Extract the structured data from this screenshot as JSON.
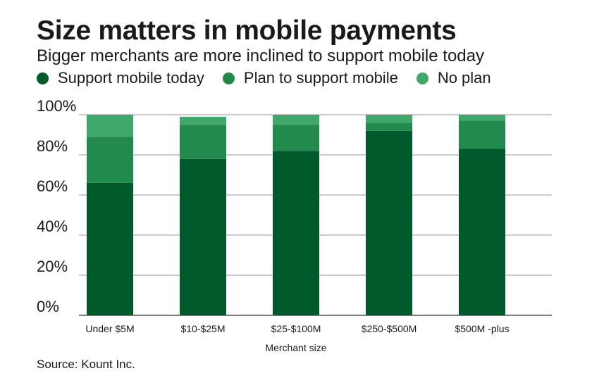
{
  "chart_data": {
    "type": "bar",
    "stacked": true,
    "title": "Size matters in mobile payments",
    "subtitle": "Bigger merchants are more inclined to support mobile today",
    "xlabel": "Merchant size",
    "ylabel": "",
    "ylim": [
      0,
      100
    ],
    "yticks": [
      "0%",
      "20%",
      "40%",
      "60%",
      "80%",
      "100%"
    ],
    "categories": [
      "Under $5M",
      "$10-$25M",
      "$25-$100M",
      "$250-$500M",
      "$500M -plus"
    ],
    "series": [
      {
        "name": "Support mobile today",
        "color": "#005a2b",
        "values": [
          66,
          78,
          82,
          92,
          83
        ]
      },
      {
        "name": "Plan to support mobile",
        "color": "#228a4c",
        "values": [
          23,
          17,
          13,
          4,
          14
        ]
      },
      {
        "name": "No plan",
        "color": "#3fa86a",
        "values": [
          11,
          4,
          5,
          4,
          3
        ]
      }
    ],
    "legend_position": "top",
    "grid": true,
    "source": "Source: Kount Inc."
  }
}
